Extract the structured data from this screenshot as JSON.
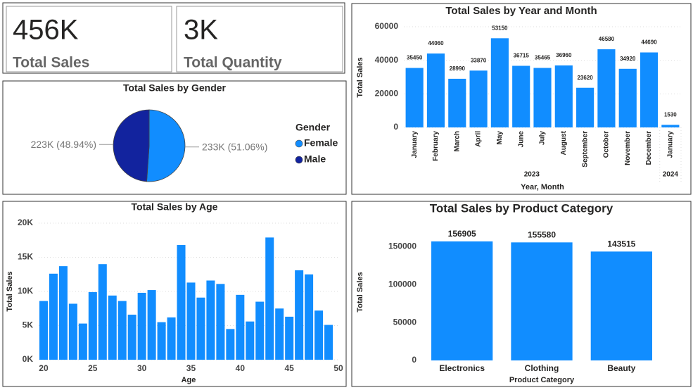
{
  "kpis": [
    {
      "value": "456K",
      "label": "Total Sales"
    },
    {
      "value": "3K",
      "label": "Total Quantity"
    }
  ],
  "chart_data": [
    {
      "type": "pie",
      "title": "Total Sales by Gender",
      "legend_title": "Gender",
      "categories": [
        "Female",
        "Male"
      ],
      "values": [
        233000,
        223000
      ],
      "value_labels": [
        "233K (51.06%)",
        "223K (48.94%)"
      ],
      "colors": [
        "#118dff",
        "#12239e"
      ]
    },
    {
      "type": "bar",
      "title": "Total Sales by Year and Month",
      "categories": [
        "January",
        "February",
        "March",
        "April",
        "May",
        "June",
        "July",
        "August",
        "September",
        "October",
        "November",
        "December",
        "January"
      ],
      "groups": [
        {
          "label": "2023",
          "size": 12
        },
        {
          "label": "2024",
          "size": 1
        }
      ],
      "values": [
        35450,
        44060,
        28990,
        33870,
        53150,
        36715,
        35465,
        36960,
        23620,
        46580,
        34920,
        44690,
        1530
      ],
      "data_labels": true,
      "color": "#118dff",
      "ylim": [
        0,
        60000
      ],
      "yticks": [
        0,
        20000,
        40000,
        60000
      ],
      "x_label": "Year, Month",
      "y_label": "Total Sales",
      "grid": true
    },
    {
      "type": "bar",
      "title": "Total Sales by Age",
      "x": [
        20,
        21,
        22,
        23,
        24,
        25,
        26,
        27,
        28,
        29,
        30,
        31,
        32,
        33,
        34,
        35,
        36,
        37,
        38,
        39,
        40,
        41,
        42,
        43,
        44,
        45,
        46,
        47,
        48,
        49
      ],
      "values": [
        8600,
        12600,
        13700,
        8200,
        5300,
        9900,
        14000,
        9400,
        8600,
        6600,
        9800,
        10200,
        5500,
        6200,
        16800,
        11300,
        9100,
        11600,
        11100,
        4500,
        9500,
        5600,
        8500,
        17900,
        7500,
        6300,
        13100,
        12500,
        7200,
        5100
      ],
      "color": "#118dff",
      "xlim": [
        19.5,
        50
      ],
      "xticks": [
        20,
        25,
        30,
        35,
        40,
        45,
        50
      ],
      "ylim": [
        0,
        20000
      ],
      "yticks": [
        {
          "value": 0,
          "label": "0K"
        },
        {
          "value": 5000,
          "label": "5K"
        },
        {
          "value": 10000,
          "label": "10K"
        },
        {
          "value": 15000,
          "label": "15K"
        },
        {
          "value": 20000,
          "label": "20K"
        }
      ],
      "x_label": "Age",
      "y_label": "Total Sales",
      "grid": true
    },
    {
      "type": "bar",
      "title": "Total Sales by Product Category",
      "categories": [
        "Electronics",
        "Clothing",
        "Beauty"
      ],
      "values": [
        156905,
        155580,
        143515
      ],
      "data_labels": true,
      "color": "#118dff",
      "ylim": [
        0,
        180000
      ],
      "yticks": [
        0,
        50000,
        100000,
        150000
      ],
      "x_label": "Product Category",
      "y_label": "Total Sales",
      "grid": false
    }
  ]
}
